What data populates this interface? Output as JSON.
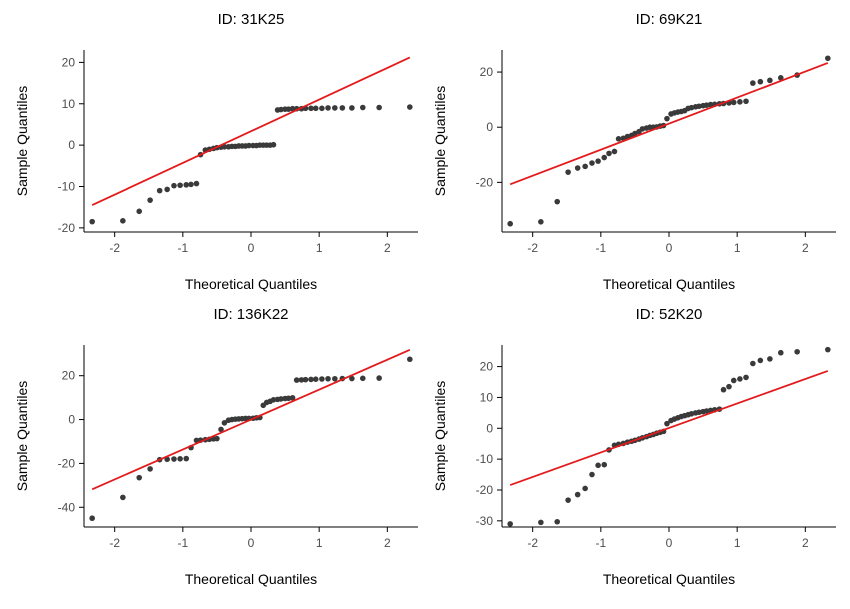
{
  "figure": {
    "background": "#ffffff",
    "point_color": "#3a3a3a",
    "line_color": "#e41a1c"
  },
  "chart_data": [
    {
      "type": "scatter",
      "title": "ID: 31K25",
      "xlabel": "Theoretical Quantiles",
      "ylabel": "Sample Quantiles",
      "xlim": [
        -2.45,
        2.45
      ],
      "ylim": [
        -21,
        23
      ],
      "xticks": [
        -2,
        -1,
        0,
        1,
        2
      ],
      "xtick_labels": [
        "-2",
        "-1",
        "0",
        "1",
        "2"
      ],
      "yticks": [
        -20,
        -10,
        0,
        10,
        20
      ],
      "ytick_labels": [
        "-20",
        "-10",
        "0",
        "10",
        "20"
      ],
      "ref_line": {
        "x": [
          -2.33,
          2.33
        ],
        "y": [
          -14.5,
          21.2
        ]
      },
      "x": [
        -2.33,
        -1.88,
        -1.64,
        -1.48,
        -1.34,
        -1.23,
        -1.13,
        -1.04,
        -0.95,
        -0.88,
        -0.8,
        -0.74,
        -0.67,
        -0.61,
        -0.55,
        -0.5,
        -0.44,
        -0.39,
        -0.33,
        -0.28,
        -0.23,
        -0.18,
        -0.13,
        -0.08,
        -0.03,
        0.03,
        0.08,
        0.13,
        0.18,
        0.23,
        0.28,
        0.33,
        0.39,
        0.44,
        0.5,
        0.55,
        0.61,
        0.67,
        0.74,
        0.8,
        0.88,
        0.95,
        1.04,
        1.13,
        1.23,
        1.34,
        1.48,
        1.64,
        1.88,
        2.33
      ],
      "y": [
        -18.5,
        -18.3,
        -16.0,
        -13.3,
        -11.0,
        -10.7,
        -9.8,
        -9.7,
        -9.6,
        -9.5,
        -9.3,
        -2.3,
        -1.2,
        -1.0,
        -0.8,
        -0.6,
        -0.5,
        -0.4,
        -0.4,
        -0.3,
        -0.3,
        -0.2,
        -0.2,
        -0.2,
        -0.1,
        -0.1,
        -0.1,
        0.0,
        0.0,
        0.0,
        0.0,
        0.1,
        8.5,
        8.6,
        8.7,
        8.7,
        8.8,
        8.8,
        8.8,
        8.9,
        8.9,
        8.9,
        8.9,
        9.0,
        9.0,
        9.0,
        9.0,
        9.1,
        9.1,
        9.2
      ]
    },
    {
      "type": "scatter",
      "title": "ID: 69K21",
      "xlabel": "Theoretical Quantiles",
      "ylabel": "Sample Quantiles",
      "xlim": [
        -2.45,
        2.45
      ],
      "ylim": [
        -38,
        28
      ],
      "xticks": [
        -2,
        -1,
        0,
        1,
        2
      ],
      "xtick_labels": [
        "-2",
        "-1",
        "0",
        "1",
        "2"
      ],
      "yticks": [
        -20,
        0,
        20
      ],
      "ytick_labels": [
        "-20",
        "0",
        "20"
      ],
      "ref_line": {
        "x": [
          -2.33,
          2.33
        ],
        "y": [
          -20.7,
          23.3
        ]
      },
      "x": [
        -2.33,
        -1.88,
        -1.64,
        -1.48,
        -1.34,
        -1.23,
        -1.13,
        -1.04,
        -0.95,
        -0.88,
        -0.8,
        -0.74,
        -0.67,
        -0.61,
        -0.55,
        -0.5,
        -0.44,
        -0.39,
        -0.33,
        -0.28,
        -0.23,
        -0.18,
        -0.13,
        -0.08,
        -0.03,
        0.03,
        0.08,
        0.13,
        0.18,
        0.23,
        0.28,
        0.33,
        0.39,
        0.44,
        0.5,
        0.55,
        0.61,
        0.67,
        0.74,
        0.8,
        0.88,
        0.95,
        1.04,
        1.13,
        1.23,
        1.34,
        1.48,
        1.64,
        1.88,
        2.33
      ],
      "y": [
        -35.0,
        -34.3,
        -27.0,
        -16.3,
        -14.8,
        -14.2,
        -13.0,
        -12.3,
        -11.0,
        -9.5,
        -8.8,
        -4.2,
        -4.0,
        -3.4,
        -3.0,
        -2.3,
        -1.6,
        -0.6,
        -0.3,
        0.0,
        0.0,
        0.1,
        0.4,
        0.6,
        3.1,
        4.8,
        5.2,
        5.5,
        5.7,
        6.0,
        6.8,
        7.1,
        7.4,
        7.6,
        7.8,
        8.0,
        8.2,
        8.3,
        8.5,
        8.6,
        8.8,
        9.0,
        9.2,
        9.4,
        16.0,
        16.5,
        17.0,
        17.9,
        18.9,
        25.0
      ]
    },
    {
      "type": "scatter",
      "title": "ID: 136K22",
      "xlabel": "Theoretical Quantiles",
      "ylabel": "Sample Quantiles",
      "xlim": [
        -2.45,
        2.45
      ],
      "ylim": [
        -49,
        34
      ],
      "xticks": [
        -2,
        -1,
        0,
        1,
        2
      ],
      "xtick_labels": [
        "-2",
        "-1",
        "0",
        "1",
        "2"
      ],
      "yticks": [
        -40,
        -20,
        0,
        20
      ],
      "ytick_labels": [
        "-40",
        "-20",
        "0",
        "20"
      ],
      "ref_line": {
        "x": [
          -2.33,
          2.33
        ],
        "y": [
          -31.8,
          31.8
        ]
      },
      "x": [
        -2.33,
        -1.88,
        -1.64,
        -1.48,
        -1.34,
        -1.23,
        -1.13,
        -1.04,
        -0.95,
        -0.88,
        -0.8,
        -0.74,
        -0.67,
        -0.61,
        -0.55,
        -0.5,
        -0.44,
        -0.39,
        -0.33,
        -0.28,
        -0.23,
        -0.18,
        -0.13,
        -0.08,
        -0.03,
        0.03,
        0.08,
        0.13,
        0.18,
        0.23,
        0.28,
        0.33,
        0.39,
        0.44,
        0.5,
        0.55,
        0.61,
        0.67,
        0.74,
        0.8,
        0.88,
        0.95,
        1.04,
        1.13,
        1.23,
        1.34,
        1.48,
        1.64,
        1.88,
        2.33
      ],
      "y": [
        -45.0,
        -35.5,
        -26.5,
        -22.5,
        -18.3,
        -18.1,
        -18.0,
        -17.9,
        -17.8,
        -12.8,
        -9.5,
        -9.4,
        -9.2,
        -9.0,
        -8.8,
        -8.7,
        -4.5,
        -1.5,
        -0.3,
        0.0,
        0.2,
        0.3,
        0.4,
        0.5,
        0.5,
        0.6,
        0.8,
        0.9,
        6.5,
        7.8,
        8.3,
        9.0,
        9.2,
        9.4,
        9.6,
        9.7,
        9.9,
        18.0,
        18.1,
        18.2,
        18.3,
        18.4,
        18.5,
        18.6,
        18.6,
        18.7,
        18.7,
        18.8,
        18.9,
        27.5
      ]
    },
    {
      "type": "scatter",
      "title": "ID: 52K20",
      "xlabel": "Theoretical Quantiles",
      "ylabel": "Sample Quantiles",
      "xlim": [
        -2.45,
        2.45
      ],
      "ylim": [
        -32,
        27
      ],
      "xticks": [
        -2,
        -1,
        0,
        1,
        2
      ],
      "xtick_labels": [
        "-2",
        "-1",
        "0",
        "1",
        "2"
      ],
      "yticks": [
        -30,
        -20,
        -10,
        0,
        10,
        20
      ],
      "ytick_labels": [
        "-30",
        "-20",
        "-10",
        "0",
        "10",
        "20"
      ],
      "ref_line": {
        "x": [
          -2.33,
          2.33
        ],
        "y": [
          -18.4,
          18.6
        ]
      },
      "x": [
        -2.33,
        -1.88,
        -1.64,
        -1.48,
        -1.34,
        -1.23,
        -1.13,
        -1.04,
        -0.95,
        -0.88,
        -0.8,
        -0.74,
        -0.67,
        -0.61,
        -0.55,
        -0.5,
        -0.44,
        -0.39,
        -0.33,
        -0.28,
        -0.23,
        -0.18,
        -0.13,
        -0.08,
        -0.03,
        0.03,
        0.08,
        0.13,
        0.18,
        0.23,
        0.28,
        0.33,
        0.39,
        0.44,
        0.5,
        0.55,
        0.61,
        0.67,
        0.74,
        0.8,
        0.88,
        0.95,
        1.04,
        1.13,
        1.23,
        1.34,
        1.48,
        1.64,
        1.88,
        2.33
      ],
      "y": [
        -31.0,
        -30.5,
        -30.3,
        -23.3,
        -21.5,
        -19.5,
        -15.0,
        -12.0,
        -11.8,
        -7.0,
        -5.5,
        -5.2,
        -4.9,
        -4.5,
        -4.2,
        -3.9,
        -3.5,
        -3.1,
        -2.7,
        -2.3,
        -2.0,
        -1.6,
        -1.3,
        -1.0,
        1.5,
        2.5,
        3.0,
        3.4,
        3.8,
        4.1,
        4.4,
        4.7,
        5.0,
        5.2,
        5.4,
        5.6,
        5.8,
        6.0,
        6.2,
        12.5,
        13.5,
        15.5,
        16.0,
        16.5,
        21.0,
        22.0,
        22.5,
        24.5,
        24.8,
        25.5
      ]
    }
  ]
}
